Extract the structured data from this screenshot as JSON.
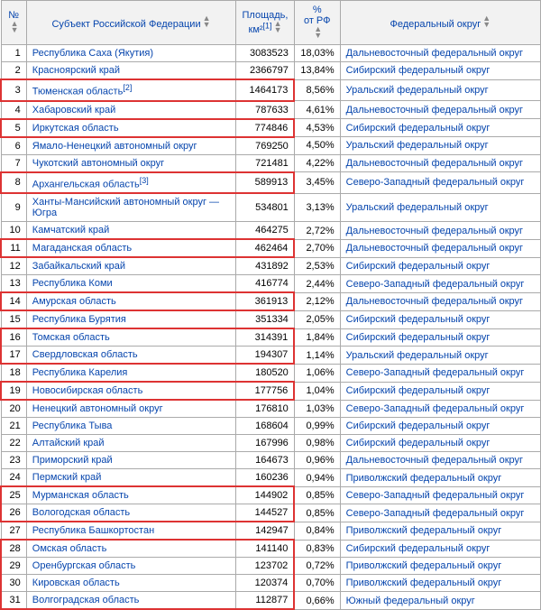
{
  "headers": {
    "num": "№",
    "subject": "Субъект Российской Федерации",
    "area": "Площадь, км²",
    "area_ref": "[1]",
    "percent_top": "%",
    "percent_bottom": "от РФ",
    "district": "Федеральный округ"
  },
  "colors": {
    "link": "#0645ad",
    "border": "#aaaaaa",
    "header_bg": "#f2f2f2",
    "highlight": "#d33"
  },
  "rows": [
    {
      "n": 1,
      "subject": "Республика Саха (Якутия)",
      "ref": "",
      "area": "3083523",
      "pct": "18,03%",
      "district": "Дальневосточный федеральный округ",
      "hl": false
    },
    {
      "n": 2,
      "subject": "Красноярский край",
      "ref": "",
      "area": "2366797",
      "pct": "13,84%",
      "district": "Сибирский федеральный округ",
      "hl": false
    },
    {
      "n": 3,
      "subject": "Тюменская область",
      "ref": "[2]",
      "area": "1464173",
      "pct": "8,56%",
      "district": "Уральский федеральный округ",
      "hl": true,
      "pos": "single"
    },
    {
      "n": 4,
      "subject": "Хабаровский край",
      "ref": "",
      "area": "787633",
      "pct": "4,61%",
      "district": "Дальневосточный федеральный округ",
      "hl": false
    },
    {
      "n": 5,
      "subject": "Иркутская область",
      "ref": "",
      "area": "774846",
      "pct": "4,53%",
      "district": "Сибирский федеральный округ",
      "hl": true,
      "pos": "single"
    },
    {
      "n": 6,
      "subject": "Ямало-Ненецкий автономный округ",
      "ref": "",
      "area": "769250",
      "pct": "4,50%",
      "district": "Уральский федеральный округ",
      "hl": false
    },
    {
      "n": 7,
      "subject": "Чукотский автономный округ",
      "ref": "",
      "area": "721481",
      "pct": "4,22%",
      "district": "Дальневосточный федеральный округ",
      "hl": false
    },
    {
      "n": 8,
      "subject": "Архангельская область",
      "ref": "[3]",
      "area": "589913",
      "pct": "3,45%",
      "district": "Северо-Западный федеральный округ",
      "hl": true,
      "pos": "single"
    },
    {
      "n": 9,
      "subject": "Ханты-Мансийский автономный округ — Югра",
      "ref": "",
      "area": "534801",
      "pct": "3,13%",
      "district": "Уральский федеральный округ",
      "hl": false
    },
    {
      "n": 10,
      "subject": "Камчатский край",
      "ref": "",
      "area": "464275",
      "pct": "2,72%",
      "district": "Дальневосточный федеральный округ",
      "hl": false
    },
    {
      "n": 11,
      "subject": "Магаданская область",
      "ref": "",
      "area": "462464",
      "pct": "2,70%",
      "district": "Дальневосточный федеральный округ",
      "hl": true,
      "pos": "single"
    },
    {
      "n": 12,
      "subject": "Забайкальский край",
      "ref": "",
      "area": "431892",
      "pct": "2,53%",
      "district": "Сибирский федеральный округ",
      "hl": false
    },
    {
      "n": 13,
      "subject": "Республика Коми",
      "ref": "",
      "area": "416774",
      "pct": "2,44%",
      "district": "Северо-Западный федеральный округ",
      "hl": false
    },
    {
      "n": 14,
      "subject": "Амурская область",
      "ref": "",
      "area": "361913",
      "pct": "2,12%",
      "district": "Дальневосточный федеральный округ",
      "hl": true,
      "pos": "single"
    },
    {
      "n": 15,
      "subject": "Республика Бурятия",
      "ref": "",
      "area": "351334",
      "pct": "2,05%",
      "district": "Сибирский федеральный округ",
      "hl": false
    },
    {
      "n": 16,
      "subject": "Томская область",
      "ref": "",
      "area": "314391",
      "pct": "1,84%",
      "district": "Сибирский федеральный округ",
      "hl": true,
      "pos": "top"
    },
    {
      "n": 17,
      "subject": "Свердловская область",
      "ref": "",
      "area": "194307",
      "pct": "1,14%",
      "district": "Уральский федеральный округ",
      "hl": true,
      "pos": "bottom"
    },
    {
      "n": 18,
      "subject": "Республика Карелия",
      "ref": "",
      "area": "180520",
      "pct": "1,06%",
      "district": "Северо-Западный федеральный округ",
      "hl": false
    },
    {
      "n": 19,
      "subject": "Новосибирская область",
      "ref": "",
      "area": "177756",
      "pct": "1,04%",
      "district": "Сибирский федеральный округ",
      "hl": true,
      "pos": "single"
    },
    {
      "n": 20,
      "subject": "Ненецкий автономный округ",
      "ref": "",
      "area": "176810",
      "pct": "1,03%",
      "district": "Северо-Западный федеральный округ",
      "hl": false
    },
    {
      "n": 21,
      "subject": "Республика Тыва",
      "ref": "",
      "area": "168604",
      "pct": "0,99%",
      "district": "Сибирский федеральный округ",
      "hl": false
    },
    {
      "n": 22,
      "subject": "Алтайский край",
      "ref": "",
      "area": "167996",
      "pct": "0,98%",
      "district": "Сибирский федеральный округ",
      "hl": false
    },
    {
      "n": 23,
      "subject": "Приморский край",
      "ref": "",
      "area": "164673",
      "pct": "0,96%",
      "district": "Дальневосточный федеральный округ",
      "hl": false
    },
    {
      "n": 24,
      "subject": "Пермский край",
      "ref": "",
      "area": "160236",
      "pct": "0,94%",
      "district": "Приволжский федеральный округ",
      "hl": false
    },
    {
      "n": 25,
      "subject": "Мурманская область",
      "ref": "",
      "area": "144902",
      "pct": "0,85%",
      "district": "Северо-Западный федеральный округ",
      "hl": true,
      "pos": "top"
    },
    {
      "n": 26,
      "subject": "Вологодская область",
      "ref": "",
      "area": "144527",
      "pct": "0,85%",
      "district": "Северо-Западный федеральный округ",
      "hl": true,
      "pos": "bottom"
    },
    {
      "n": 27,
      "subject": "Республика Башкортостан",
      "ref": "",
      "area": "142947",
      "pct": "0,84%",
      "district": "Приволжский федеральный округ",
      "hl": false
    },
    {
      "n": 28,
      "subject": "Омская область",
      "ref": "",
      "area": "141140",
      "pct": "0,83%",
      "district": "Сибирский федеральный округ",
      "hl": true,
      "pos": "top"
    },
    {
      "n": 29,
      "subject": "Оренбургская область",
      "ref": "",
      "area": "123702",
      "pct": "0,72%",
      "district": "Приволжский федеральный округ",
      "hl": true,
      "pos": "mid"
    },
    {
      "n": 30,
      "subject": "Кировская область",
      "ref": "",
      "area": "120374",
      "pct": "0,70%",
      "district": "Приволжский федеральный округ",
      "hl": true,
      "pos": "mid"
    },
    {
      "n": 31,
      "subject": "Волгоградская область",
      "ref": "",
      "area": "112877",
      "pct": "0,66%",
      "district": "Южный федеральный округ",
      "hl": true,
      "pos": "bottom"
    }
  ]
}
